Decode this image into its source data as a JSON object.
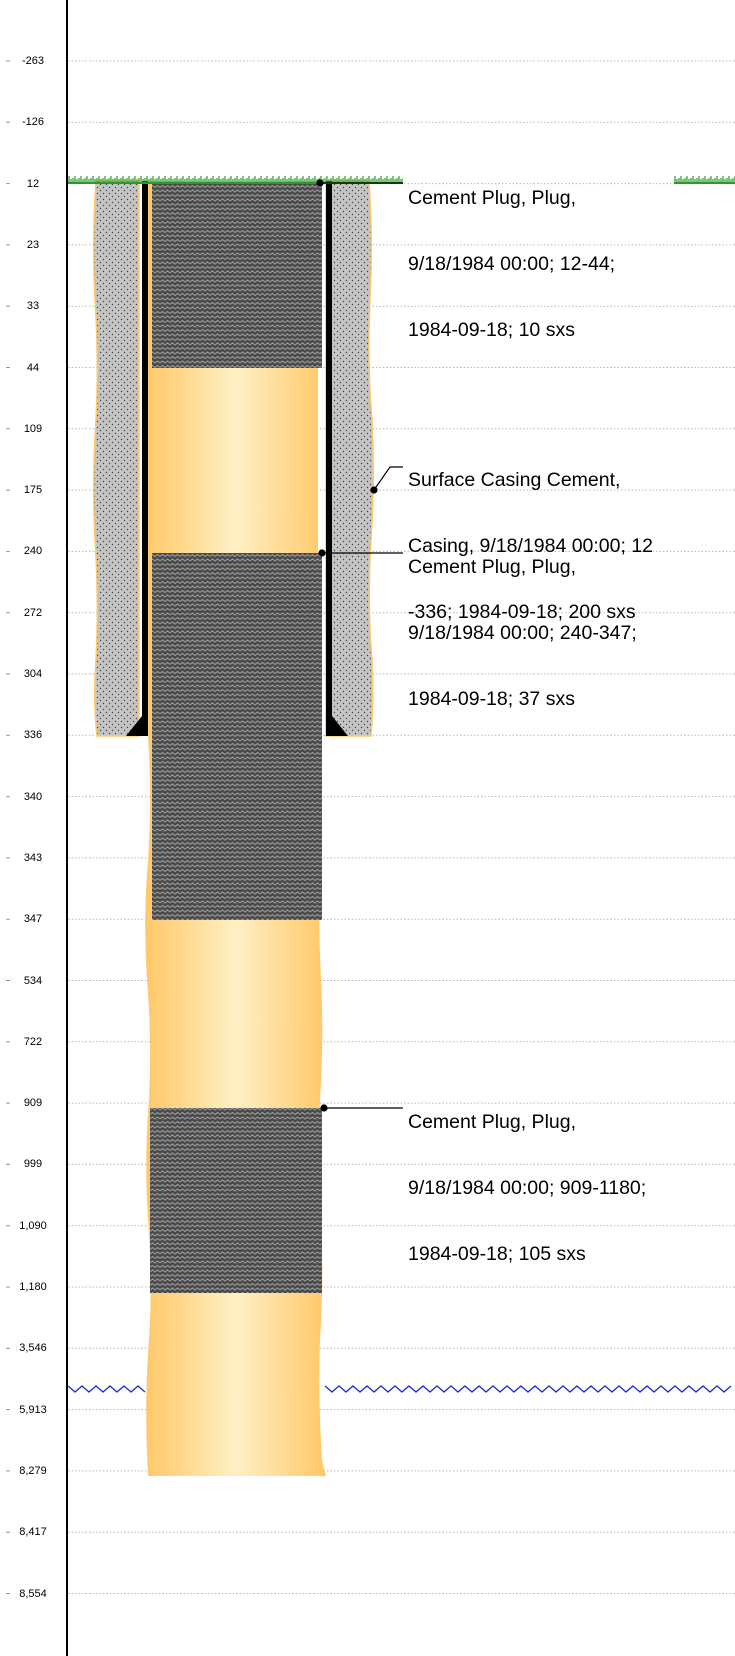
{
  "depth_labels": [
    "-263",
    "-126",
    "12",
    "23",
    "33",
    "44",
    "109",
    "175",
    "240",
    "272",
    "304",
    "336",
    "340",
    "343",
    "347",
    "534",
    "722",
    "909",
    "999",
    "1,090",
    "1,180",
    "3,546",
    "5,913",
    "8,279",
    "8,417",
    "8,554"
  ],
  "annotations": [
    {
      "lines": [
        "Cement Plug, Plug,",
        "9/18/1984 00:00; 12-44;",
        "1984-09-18; 10 sxs"
      ]
    },
    {
      "lines": [
        "Surface Casing Cement,",
        "Casing, 9/18/1984 00:00; 12",
        "-336; 1984-09-18; 200 sxs"
      ]
    },
    {
      "lines": [
        "Cement Plug, Plug,",
        "9/18/1984 00:00; 240-347;",
        "1984-09-18; 37 sxs"
      ]
    },
    {
      "lines": [
        "Cement Plug, Plug,",
        "9/18/1984 00:00; 909-1180;",
        "1984-09-18; 105 sxs"
      ]
    }
  ],
  "colors": {
    "ground": "#2a9a2a",
    "water": "#1a2ad0",
    "cement_plug": "#4a4a4a",
    "casing_cement": "#bdbdbd",
    "hole_fill": "#ffd27a",
    "casing": "#000000"
  }
}
